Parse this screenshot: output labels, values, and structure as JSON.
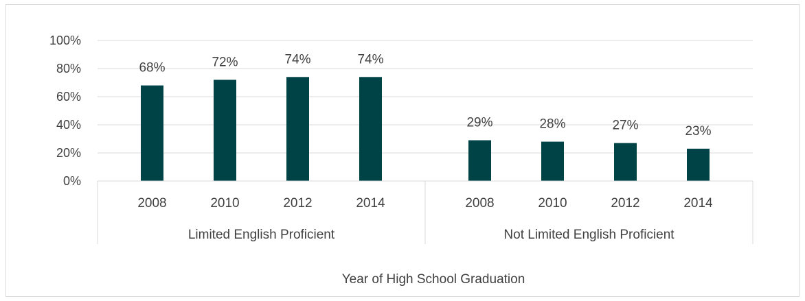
{
  "chart_data": {
    "type": "bar",
    "title": "",
    "xlabel": "Year of High School Graduation",
    "ylabel": "",
    "ylim": [
      0,
      100
    ],
    "y_ticks": [
      "0%",
      "20%",
      "40%",
      "60%",
      "80%",
      "100%"
    ],
    "y_tick_values": [
      0,
      20,
      40,
      60,
      80,
      100
    ],
    "grid": true,
    "bar_color": "#004347",
    "groups": [
      {
        "label": "Limited English Proficient",
        "categories": [
          "2008",
          "2010",
          "2012",
          "2014"
        ],
        "values": [
          68,
          72,
          74,
          74
        ],
        "data_labels": [
          "68%",
          "72%",
          "74%",
          "74%"
        ]
      },
      {
        "label": "Not Limited English Proficient",
        "categories": [
          "2008",
          "2010",
          "2012",
          "2014"
        ],
        "values": [
          29,
          28,
          27,
          23
        ],
        "data_labels": [
          "29%",
          "28%",
          "27%",
          "23%"
        ]
      }
    ]
  }
}
